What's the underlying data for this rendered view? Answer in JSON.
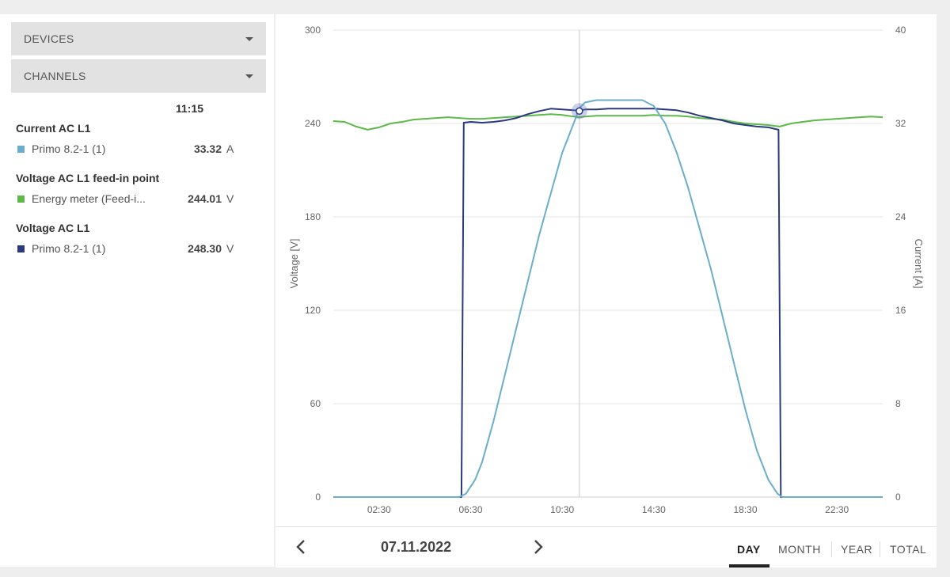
{
  "sidebar": {
    "devices_label": "DEVICES",
    "channels_label": "CHANNELS",
    "time": "11:15",
    "groups": [
      {
        "title": "Current AC L1",
        "items": [
          {
            "name": "Primo 8.2-1 (1)",
            "value": "33.32",
            "unit": "A",
            "color": "#6aaecb"
          }
        ]
      },
      {
        "title": "Voltage AC L1 feed-in point",
        "items": [
          {
            "name": "Energy meter (Feed-i...",
            "value": "244.01",
            "unit": "V",
            "color": "#5cb94a"
          }
        ]
      },
      {
        "title": "Voltage AC L1",
        "items": [
          {
            "name": "Primo 8.2-1 (1)",
            "value": "248.30",
            "unit": "V",
            "color": "#2b3a80"
          }
        ]
      }
    ]
  },
  "chart_data": {
    "type": "line",
    "x_ticks": [
      "02:30",
      "06:30",
      "10:30",
      "14:30",
      "18:30",
      "22:30"
    ],
    "y_left_label": "Voltage [V]",
    "y_left_ticks": [
      "0",
      "60",
      "120",
      "180",
      "240",
      "300"
    ],
    "y_left_range": [
      0,
      300
    ],
    "y_right_label": "Current [A]",
    "y_right_ticks": [
      "0",
      "8",
      "16",
      "24",
      "32",
      "40"
    ],
    "y_right_range": [
      0,
      40
    ],
    "x_range_hours": [
      0.5,
      24.5
    ],
    "cursor_time_hours": 11.25,
    "grid": true,
    "series": [
      {
        "color": "#5cb94a",
        "axis": "left",
        "points": [
          [
            0.5,
            241.5
          ],
          [
            1,
            241
          ],
          [
            1.5,
            238
          ],
          [
            2,
            236
          ],
          [
            2.5,
            237.5
          ],
          [
            3,
            240
          ],
          [
            3.5,
            241
          ],
          [
            4,
            242.5
          ],
          [
            4.5,
            243
          ],
          [
            5,
            243.5
          ],
          [
            5.5,
            244
          ],
          [
            6,
            243.5
          ],
          [
            6.5,
            243
          ],
          [
            7,
            243
          ],
          [
            7.5,
            243.5
          ],
          [
            8,
            244
          ],
          [
            8.5,
            244.5
          ],
          [
            9,
            245
          ],
          [
            9.5,
            245.5
          ],
          [
            10,
            246
          ],
          [
            10.5,
            245.5
          ],
          [
            11,
            244.5
          ],
          [
            11.25,
            244
          ],
          [
            11.5,
            244.5
          ],
          [
            12,
            245
          ],
          [
            12.5,
            245
          ],
          [
            13,
            245
          ],
          [
            13.5,
            245
          ],
          [
            14,
            245
          ],
          [
            14.5,
            245.5
          ],
          [
            15,
            245
          ],
          [
            15.5,
            245
          ],
          [
            16,
            244.5
          ],
          [
            16.5,
            243.5
          ],
          [
            17,
            243
          ],
          [
            17.5,
            242.5
          ],
          [
            18,
            241
          ],
          [
            18.5,
            240
          ],
          [
            19,
            239.5
          ],
          [
            19.5,
            239
          ],
          [
            20,
            238
          ],
          [
            20.5,
            240
          ],
          [
            21,
            241
          ],
          [
            21.5,
            242
          ],
          [
            22,
            242.5
          ],
          [
            22.5,
            243
          ],
          [
            23,
            243.5
          ],
          [
            23.5,
            244
          ],
          [
            24,
            244.5
          ],
          [
            24.5,
            244
          ]
        ]
      },
      {
        "color": "#2b3a80",
        "axis": "left",
        "points": [
          [
            0.5,
            0
          ],
          [
            6.1,
            0
          ],
          [
            6.2,
            240.5
          ],
          [
            6.5,
            241
          ],
          [
            7,
            240.5
          ],
          [
            7.5,
            241
          ],
          [
            8,
            242
          ],
          [
            8.5,
            243.5
          ],
          [
            9,
            246
          ],
          [
            9.5,
            248
          ],
          [
            10,
            249.5
          ],
          [
            10.5,
            249
          ],
          [
            11,
            248.5
          ],
          [
            11.25,
            248.3
          ],
          [
            11.5,
            249
          ],
          [
            12,
            249
          ],
          [
            12.5,
            249.5
          ],
          [
            13,
            249.5
          ],
          [
            13.5,
            249.5
          ],
          [
            14,
            249.5
          ],
          [
            14.5,
            249.5
          ],
          [
            15,
            249
          ],
          [
            15.5,
            248.5
          ],
          [
            16,
            247
          ],
          [
            16.5,
            245
          ],
          [
            17,
            243.5
          ],
          [
            17.5,
            242
          ],
          [
            18,
            240
          ],
          [
            18.5,
            239
          ],
          [
            19,
            238
          ],
          [
            19.5,
            237.5
          ],
          [
            19.95,
            236
          ],
          [
            20.05,
            0
          ],
          [
            24.5,
            0
          ]
        ]
      },
      {
        "color": "#6aaecb",
        "axis": "right",
        "points": [
          [
            0.5,
            0
          ],
          [
            6,
            0
          ],
          [
            6.3,
            0.3
          ],
          [
            6.7,
            1.5
          ],
          [
            7,
            3
          ],
          [
            7.5,
            6.5
          ],
          [
            8,
            10.5
          ],
          [
            8.5,
            14.5
          ],
          [
            9,
            18.5
          ],
          [
            9.5,
            22.5
          ],
          [
            10,
            26
          ],
          [
            10.5,
            29.5
          ],
          [
            11,
            32
          ],
          [
            11.25,
            33.32
          ],
          [
            11.5,
            33.8
          ],
          [
            12,
            34
          ],
          [
            12.5,
            34
          ],
          [
            13,
            34
          ],
          [
            13.5,
            34
          ],
          [
            14,
            34
          ],
          [
            14.5,
            33.5
          ],
          [
            15,
            32
          ],
          [
            15.5,
            29.5
          ],
          [
            16,
            26.5
          ],
          [
            16.5,
            23
          ],
          [
            17,
            19.5
          ],
          [
            17.5,
            15.5
          ],
          [
            18,
            11.5
          ],
          [
            18.5,
            7.5
          ],
          [
            19,
            4
          ],
          [
            19.5,
            1.5
          ],
          [
            19.9,
            0.3
          ],
          [
            20.1,
            0
          ],
          [
            24.5,
            0
          ]
        ]
      }
    ]
  },
  "footer": {
    "date": "07.11.2022",
    "tabs": [
      "DAY",
      "MONTH",
      "YEAR",
      "TOTAL"
    ],
    "active_tab": "DAY"
  }
}
